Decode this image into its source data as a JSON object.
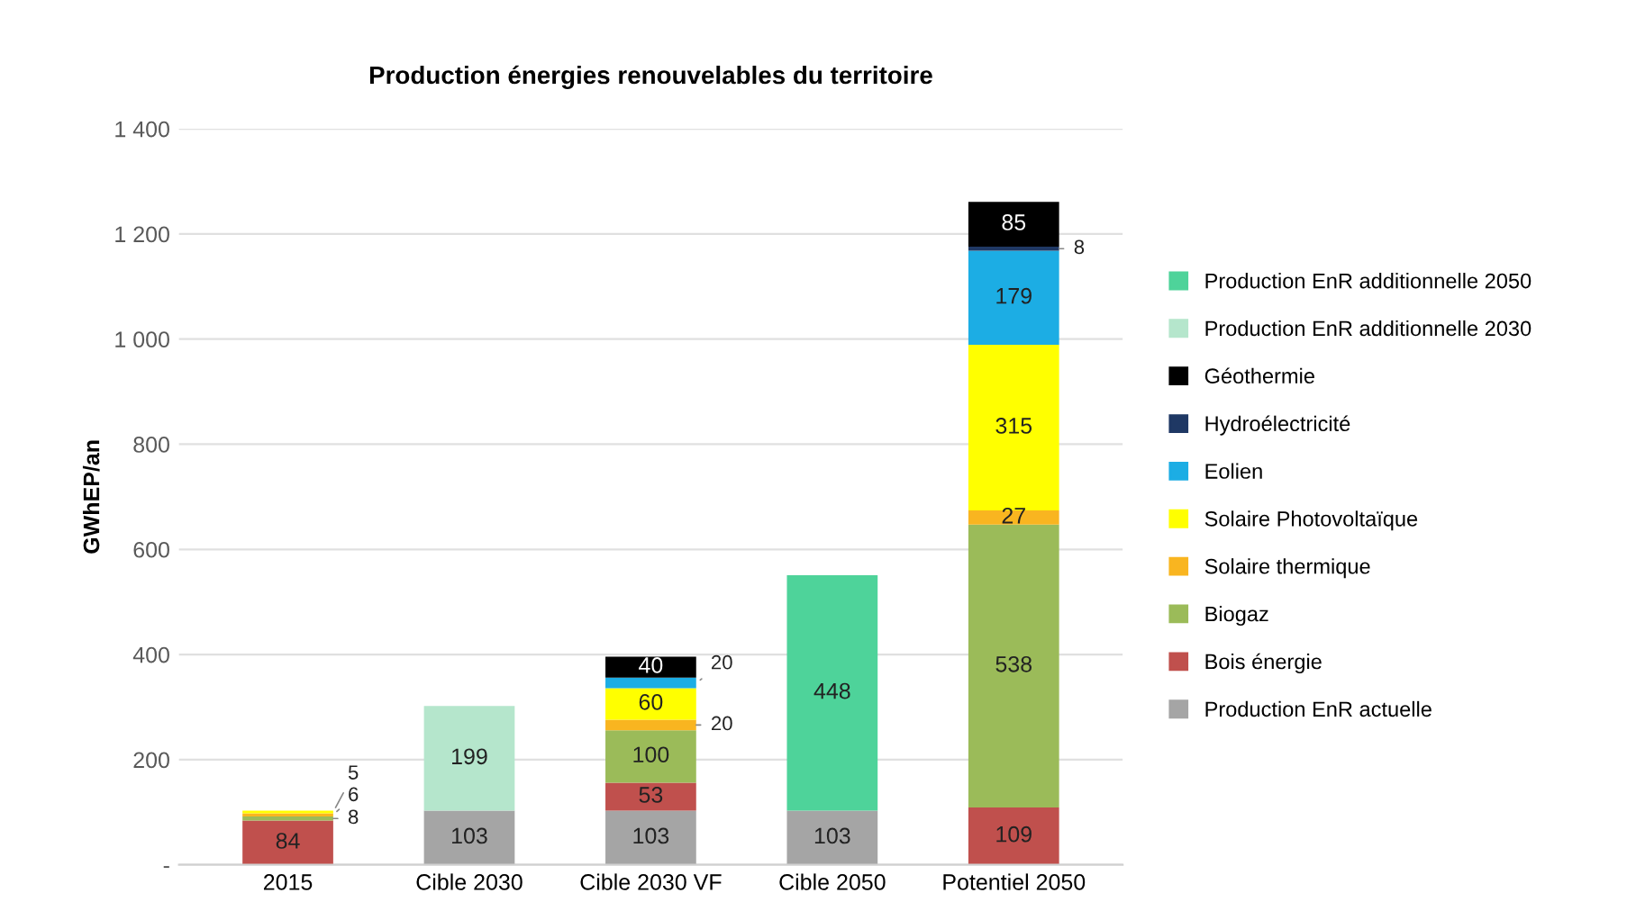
{
  "chart_data": {
    "type": "bar",
    "stacked": true,
    "title": "Production énergies renouvelables du territoire",
    "ylabel": "GWhEP/an",
    "categories": [
      "2015",
      "Cible 2030",
      "Cible 2030 VF",
      "Cible 2050",
      "Potentiel 2050"
    ],
    "ylim": [
      0,
      1400
    ],
    "yticks": [
      {
        "value": 0,
        "label": "-"
      },
      {
        "value": 200,
        "label": "200"
      },
      {
        "value": 400,
        "label": "400"
      },
      {
        "value": 600,
        "label": "600"
      },
      {
        "value": 800,
        "label": "800"
      },
      {
        "value": 1000,
        "label": "1 000"
      },
      {
        "value": 1200,
        "label": "1 200"
      },
      {
        "value": 1400,
        "label": "1 400"
      }
    ],
    "grid": "y",
    "legend": "right",
    "data_labels": true,
    "series": [
      {
        "name": "Production EnR actuelle",
        "color": "#a5a5a5",
        "values": [
          null,
          103,
          103,
          103,
          null
        ]
      },
      {
        "name": "Bois énergie",
        "color": "#c0504d",
        "values": [
          84,
          null,
          53,
          null,
          109
        ]
      },
      {
        "name": "Biogaz",
        "color": "#9bbb59",
        "values": [
          8,
          null,
          100,
          null,
          538
        ]
      },
      {
        "name": "Solaire thermique",
        "color": "#f9b520",
        "values": [
          6,
          null,
          20,
          null,
          27
        ]
      },
      {
        "name": "Solaire Photovoltaïque",
        "color": "#ffff00",
        "values": [
          5,
          null,
          60,
          null,
          315
        ]
      },
      {
        "name": "Eolien",
        "color": "#1cade4",
        "values": [
          null,
          null,
          20,
          null,
          179
        ]
      },
      {
        "name": "Hydroélectricité",
        "color": "#1f3864",
        "values": [
          null,
          null,
          null,
          null,
          8
        ]
      },
      {
        "name": "Géothermie",
        "color": "#000000",
        "values": [
          null,
          null,
          40,
          null,
          85
        ]
      },
      {
        "name": "Production EnR additionnelle 2030",
        "color": "#b5e6cc",
        "values": [
          null,
          199,
          null,
          null,
          null
        ]
      },
      {
        "name": "Production EnR additionnelle 2050",
        "color": "#4ed39a",
        "values": [
          null,
          null,
          null,
          448,
          null
        ]
      }
    ]
  }
}
